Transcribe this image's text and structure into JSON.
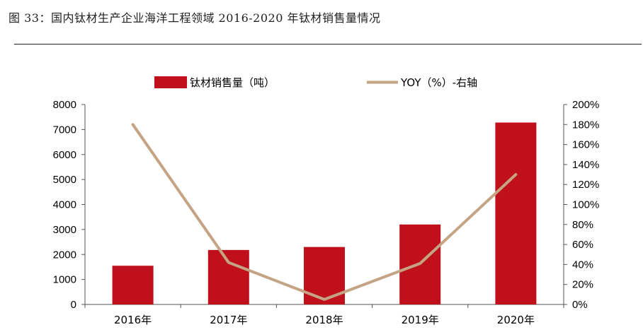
{
  "figure": {
    "title": "图 33：国内钛材生产企业海洋工程领域 2016-2020 年钛材销售量情况"
  },
  "chart_data": {
    "type": "bar",
    "categories": [
      "2016年",
      "2017年",
      "2018年",
      "2019年",
      "2020年"
    ],
    "series": [
      {
        "name": "钛材销售量（吨）",
        "type": "bar",
        "axis": "left",
        "color": "#c0101c",
        "values": [
          1550,
          2180,
          2300,
          3200,
          7280
        ]
      },
      {
        "name": "YOY（%）-右轴",
        "type": "line",
        "axis": "right",
        "color": "#c4a484",
        "values": [
          1.8,
          0.42,
          0.05,
          0.41,
          1.3
        ]
      }
    ],
    "y_left": {
      "ylim": [
        0,
        8000
      ],
      "ticks": [
        0,
        1000,
        2000,
        3000,
        4000,
        5000,
        6000,
        7000,
        8000
      ],
      "tick_labels": [
        "0",
        "1000",
        "2000",
        "3000",
        "4000",
        "5000",
        "6000",
        "7000",
        "8000"
      ]
    },
    "y_right": {
      "ylim": [
        0,
        2.0
      ],
      "ticks": [
        0,
        0.2,
        0.4,
        0.6,
        0.8,
        1.0,
        1.2,
        1.4,
        1.6,
        1.8,
        2.0
      ],
      "tick_labels": [
        "0%",
        "20%",
        "40%",
        "60%",
        "80%",
        "100%",
        "120%",
        "140%",
        "160%",
        "180%",
        "200%"
      ]
    },
    "grid": false,
    "legend_position": "top"
  }
}
